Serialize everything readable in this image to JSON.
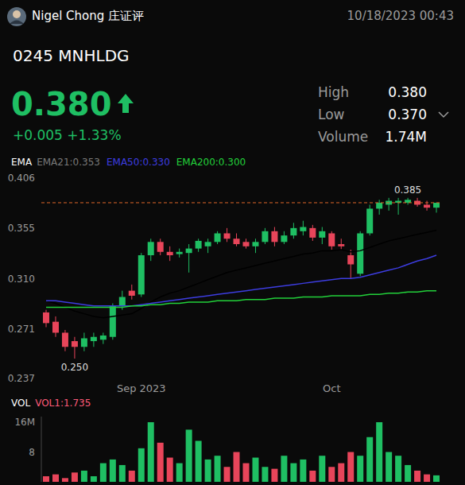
{
  "header": {
    "user": "Nigel Chong 庄证评",
    "datetime": "10/18/2023 00:43",
    "symbol": "0245 MNHLDG",
    "price": "0.380",
    "change": "+0.005 +1.33%",
    "color": "#1fbf63",
    "stats": [
      {
        "label": "High",
        "value": "0.380"
      },
      {
        "label": "Low",
        "value": "0.370"
      },
      {
        "label": "Volume",
        "value": "1.74M"
      }
    ]
  },
  "chart_data": [
    {
      "type": "candlestick",
      "title": "EMA",
      "categories": [
        null,
        null,
        null,
        null,
        null,
        null,
        null,
        null,
        null,
        null,
        "Sep 2023",
        null,
        null,
        null,
        null,
        null,
        null,
        null,
        null,
        null,
        null,
        null,
        null,
        null,
        null,
        null,
        null,
        null,
        null,
        null,
        "Oct",
        null,
        null,
        null,
        null,
        null,
        null,
        null,
        null,
        null,
        null,
        null
      ],
      "open": [
        0.283,
        0.276,
        0.268,
        0.262,
        0.258,
        0.262,
        0.263,
        0.265,
        0.288,
        0.3,
        0.297,
        0.33,
        0.342,
        0.333,
        0.331,
        0.332,
        0.336,
        0.338,
        0.342,
        0.35,
        0.345,
        0.342,
        0.338,
        0.342,
        0.352,
        0.342,
        0.348,
        0.352,
        0.355,
        0.346,
        0.35,
        0.34,
        0.33,
        0.314,
        0.35,
        0.374,
        0.378,
        0.38,
        0.38,
        0.382,
        0.378,
        0.375
      ],
      "high": [
        0.285,
        0.28,
        0.27,
        0.265,
        0.268,
        0.268,
        0.268,
        0.29,
        0.3,
        0.305,
        0.332,
        0.345,
        0.345,
        0.338,
        0.336,
        0.34,
        0.345,
        0.345,
        0.352,
        0.355,
        0.35,
        0.345,
        0.345,
        0.355,
        0.356,
        0.352,
        0.36,
        0.362,
        0.358,
        0.356,
        0.352,
        0.345,
        0.335,
        0.352,
        0.378,
        0.383,
        0.385,
        0.385,
        0.385,
        0.385,
        0.382,
        0.38
      ],
      "low": [
        0.272,
        0.265,
        0.255,
        0.25,
        0.255,
        0.258,
        0.26,
        0.263,
        0.285,
        0.293,
        0.295,
        0.325,
        0.33,
        0.325,
        0.328,
        0.315,
        0.333,
        0.332,
        0.34,
        0.342,
        0.338,
        0.336,
        0.332,
        0.34,
        0.338,
        0.34,
        0.345,
        0.348,
        0.343,
        0.34,
        0.335,
        0.335,
        0.31,
        0.312,
        0.348,
        0.368,
        0.372,
        0.368,
        0.378,
        0.376,
        0.372,
        0.37
      ],
      "close": [
        0.275,
        0.268,
        0.258,
        0.258,
        0.264,
        0.265,
        0.266,
        0.288,
        0.295,
        0.296,
        0.33,
        0.342,
        0.333,
        0.33,
        0.333,
        0.336,
        0.343,
        0.342,
        0.35,
        0.345,
        0.34,
        0.338,
        0.342,
        0.352,
        0.342,
        0.348,
        0.355,
        0.356,
        0.346,
        0.352,
        0.338,
        0.338,
        0.322,
        0.35,
        0.374,
        0.38,
        0.382,
        0.382,
        0.383,
        0.378,
        0.375,
        0.38
      ],
      "colors": [
        "#e8455a",
        "#e8455a",
        "#e8455a",
        "#e8455a",
        "#1fbf63",
        "#1fbf63",
        "#1fbf63",
        "#1fbf63",
        "#1fbf63",
        "#e8455a",
        "#1fbf63",
        "#1fbf63",
        "#e8455a",
        "#e8455a",
        "#1fbf63",
        "#1fbf63",
        "#1fbf63",
        "#1fbf63",
        "#1fbf63",
        "#e8455a",
        "#e8455a",
        "#e8455a",
        "#1fbf63",
        "#1fbf63",
        "#e8455a",
        "#1fbf63",
        "#1fbf63",
        "#1fbf63",
        "#e8455a",
        "#1fbf63",
        "#e8455a",
        "#e8455a",
        "#e8455a",
        "#1fbf63",
        "#1fbf63",
        "#1fbf63",
        "#1fbf63",
        "#1fbf63",
        "#1fbf63",
        "#e8455a",
        "#e8455a",
        "#1fbf63"
      ],
      "series": [
        {
          "name": "EMA21:0.353",
          "color": "#000000",
          "values": [
            0.292,
            0.29,
            0.287,
            0.284,
            0.282,
            0.28,
            0.279,
            0.28,
            0.281,
            0.282,
            0.286,
            0.291,
            0.295,
            0.298,
            0.3,
            0.303,
            0.306,
            0.309,
            0.312,
            0.315,
            0.317,
            0.319,
            0.321,
            0.323,
            0.325,
            0.327,
            0.329,
            0.331,
            0.332,
            0.334,
            0.334,
            0.335,
            0.333,
            0.334,
            0.337,
            0.34,
            0.343,
            0.345,
            0.347,
            0.349,
            0.351,
            0.353
          ]
        },
        {
          "name": "EMA50:0.330",
          "color": "#3d3de0",
          "values": [
            0.292,
            0.292,
            0.291,
            0.29,
            0.289,
            0.288,
            0.288,
            0.288,
            0.288,
            0.288,
            0.289,
            0.29,
            0.291,
            0.292,
            0.293,
            0.294,
            0.295,
            0.296,
            0.297,
            0.298,
            0.299,
            0.3,
            0.301,
            0.302,
            0.303,
            0.304,
            0.305,
            0.306,
            0.307,
            0.308,
            0.309,
            0.31,
            0.31,
            0.311,
            0.313,
            0.315,
            0.317,
            0.319,
            0.322,
            0.325,
            0.327,
            0.33
          ]
        },
        {
          "name": "EMA200:0.300",
          "color": "#22d13a",
          "values": [
            0.287,
            0.287,
            0.287,
            0.287,
            0.287,
            0.287,
            0.287,
            0.287,
            0.287,
            0.288,
            0.288,
            0.289,
            0.289,
            0.29,
            0.29,
            0.291,
            0.291,
            0.291,
            0.292,
            0.292,
            0.292,
            0.293,
            0.293,
            0.293,
            0.294,
            0.294,
            0.294,
            0.295,
            0.295,
            0.295,
            0.296,
            0.296,
            0.296,
            0.296,
            0.297,
            0.297,
            0.298,
            0.298,
            0.299,
            0.299,
            0.3,
            0.3
          ]
        }
      ],
      "ylim": [
        0.237,
        0.406
      ],
      "yticks": [
        0.406,
        0.355,
        {
          "value": 0.31,
          "label": "0.310"
        },
        0.271,
        0.237
      ],
      "log": "y",
      "price_line": 0.38,
      "annotations": [
        {
          "text": "0.385",
          "x": 38,
          "y": 0.385
        },
        {
          "text": "0.250",
          "x": 3,
          "y": 0.25
        }
      ]
    },
    {
      "type": "bar",
      "title": "VOL",
      "subtitle": "VOL1:1.735",
      "categories": [
        null,
        null,
        null,
        null,
        null,
        null,
        null,
        null,
        null,
        null,
        "Sep 2023",
        null,
        null,
        null,
        null,
        null,
        null,
        null,
        null,
        null,
        null,
        null,
        null,
        null,
        null,
        null,
        null,
        null,
        null,
        null,
        "Oct",
        null,
        null,
        null,
        null,
        null,
        null,
        null,
        null,
        null,
        null,
        null
      ],
      "values": [
        1.5,
        2,
        1,
        2.5,
        3,
        1.5,
        5,
        6,
        4.5,
        3,
        9,
        16,
        10.5,
        6.5,
        5,
        14,
        11,
        6,
        7,
        4,
        8,
        5,
        6.5,
        4,
        3.5,
        7,
        5,
        6,
        3,
        7,
        4,
        5,
        8,
        7,
        12,
        16,
        8,
        7,
        4.5,
        3,
        2,
        1.735
      ],
      "colors": [
        "#e8455a",
        "#e8455a",
        "#e8455a",
        "#e8455a",
        "#1fbf63",
        "#1fbf63",
        "#1fbf63",
        "#1fbf63",
        "#1fbf63",
        "#e8455a",
        "#1fbf63",
        "#1fbf63",
        "#e8455a",
        "#e8455a",
        "#1fbf63",
        "#1fbf63",
        "#1fbf63",
        "#1fbf63",
        "#1fbf63",
        "#e8455a",
        "#e8455a",
        "#e8455a",
        "#1fbf63",
        "#1fbf63",
        "#e8455a",
        "#1fbf63",
        "#1fbf63",
        "#1fbf63",
        "#e8455a",
        "#1fbf63",
        "#e8455a",
        "#e8455a",
        "#e8455a",
        "#1fbf63",
        "#1fbf63",
        "#1fbf63",
        "#1fbf63",
        "#1fbf63",
        "#1fbf63",
        "#e8455a",
        "#e8455a",
        "#1fbf63"
      ],
      "ylim": [
        0,
        17.5
      ],
      "yticks": [
        {
          "value": 16,
          "label": "16M"
        },
        8
      ],
      "tick_labels": "y"
    }
  ]
}
